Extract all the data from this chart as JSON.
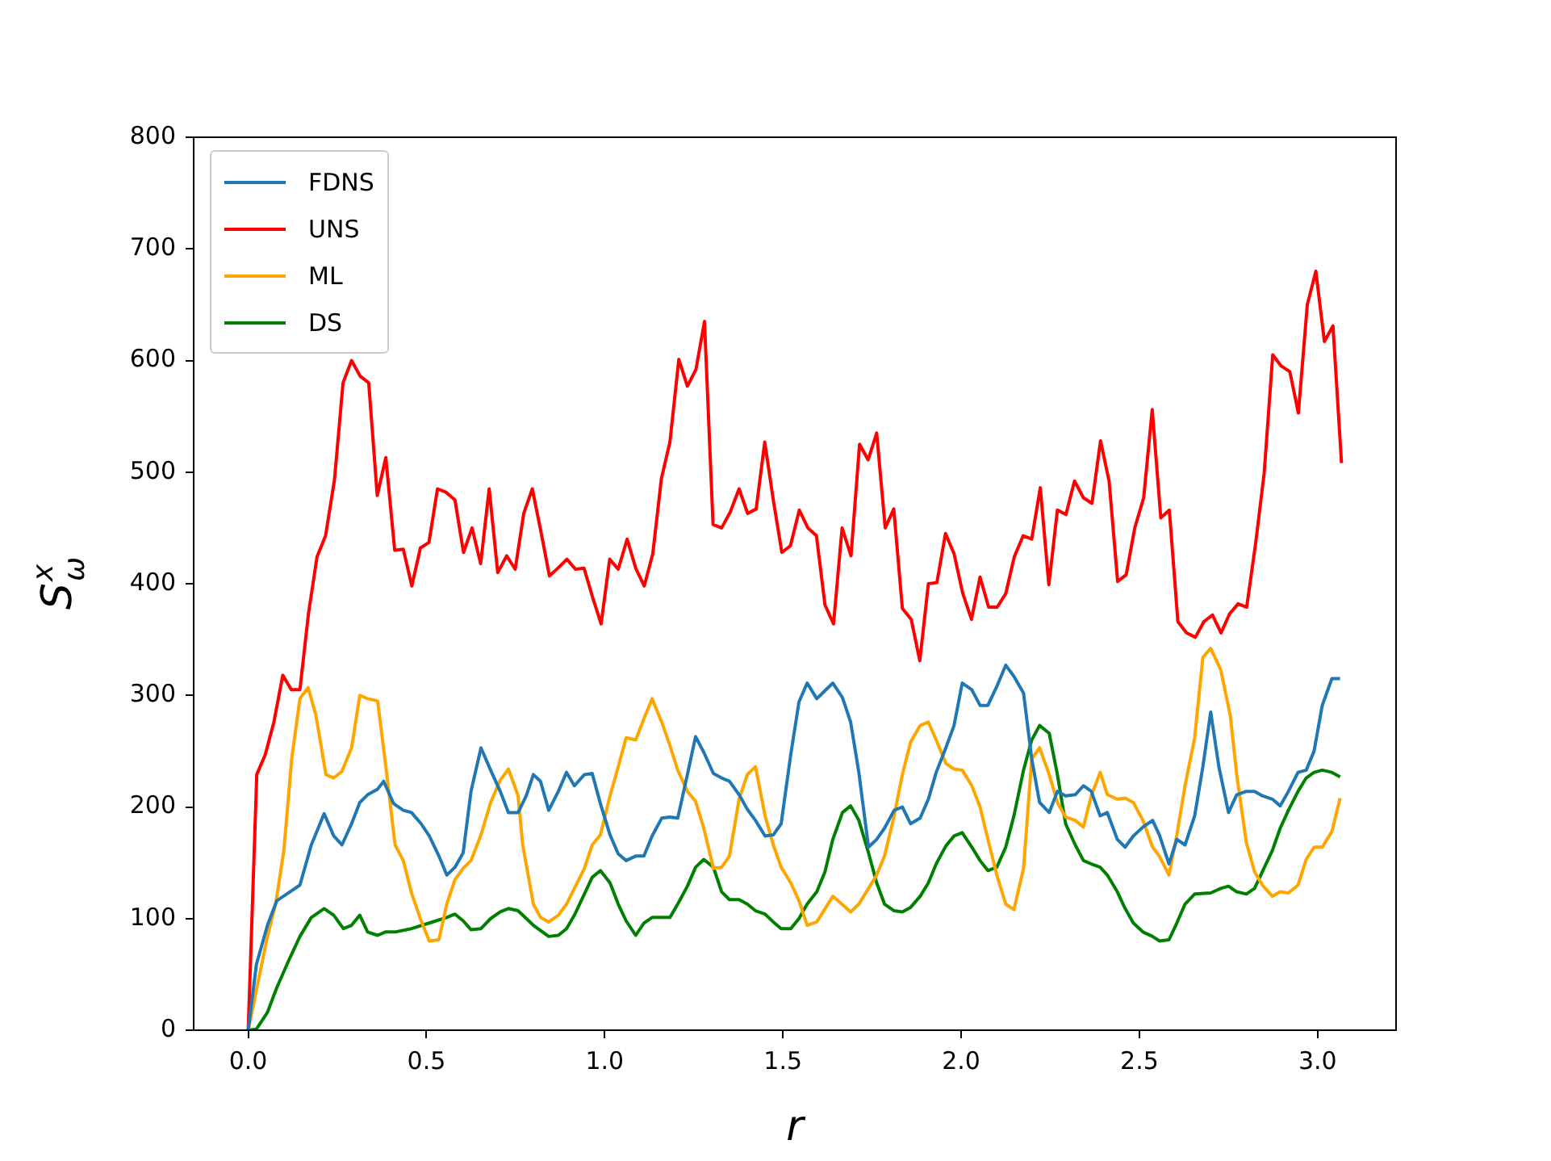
{
  "chart_data": {
    "type": "line",
    "xlabel": "r",
    "ylabel": "S$_{ω}$$^{x}$",
    "xlim": [
      -0.153,
      3.22
    ],
    "ylim": [
      0,
      800
    ],
    "xticks": [
      {
        "value": 0,
        "label": "0.0"
      },
      {
        "value": 0.5,
        "label": "0.5"
      },
      {
        "value": 1,
        "label": "1.0"
      },
      {
        "value": 1.5,
        "label": "1.5"
      },
      {
        "value": 2,
        "label": "2.0"
      },
      {
        "value": 2.5,
        "label": "2.5"
      },
      {
        "value": 3,
        "label": "3.0"
      }
    ],
    "yticks": [
      0,
      100,
      200,
      300,
      400,
      500,
      600,
      700,
      800
    ],
    "grid": false,
    "legend": "top left",
    "marker": "none",
    "line_style": "solid",
    "series": [
      {
        "name": "FDNS",
        "color": "#1f77b4",
        "x": [
          0,
          0.023,
          0.054,
          0.08,
          0.113,
          0.145,
          0.177,
          0.213,
          0.24,
          0.263,
          0.29,
          0.313,
          0.335,
          0.363,
          0.38,
          0.408,
          0.435,
          0.458,
          0.485,
          0.508,
          0.535,
          0.557,
          0.58,
          0.603,
          0.625,
          0.653,
          0.68,
          0.707,
          0.73,
          0.757,
          0.78,
          0.8,
          0.82,
          0.843,
          0.87,
          0.893,
          0.915,
          0.943,
          0.965,
          0.988,
          1.015,
          1.038,
          1.06,
          1.087,
          1.11,
          1.133,
          1.16,
          1.183,
          1.205,
          1.232,
          1.255,
          1.278,
          1.305,
          1.328,
          1.35,
          1.377,
          1.4,
          1.423,
          1.45,
          1.473,
          1.495,
          1.522,
          1.545,
          1.568,
          1.595,
          1.64,
          1.667,
          1.69,
          1.713,
          1.74,
          1.763,
          1.785,
          1.812,
          1.835,
          1.858,
          1.885,
          1.908,
          1.93,
          1.957,
          1.98,
          2.003,
          2.03,
          2.053,
          2.075,
          2.1,
          2.125,
          2.148,
          2.175,
          2.198,
          2.22,
          2.247,
          2.27,
          2.293,
          2.32,
          2.343,
          2.365,
          2.39,
          2.41,
          2.438,
          2.46,
          2.483,
          2.51,
          2.537,
          2.556,
          2.583,
          2.605,
          2.628,
          2.655,
          2.678,
          2.7,
          2.723,
          2.75,
          2.773,
          2.8,
          2.823,
          2.845,
          2.873,
          2.895,
          2.918,
          2.945,
          2.968,
          2.99,
          3.013,
          3.04,
          3.063
        ],
        "values": [
          0,
          59,
          94,
          116,
          123,
          130,
          166,
          194,
          174,
          166,
          185,
          204,
          211,
          216,
          223,
          203,
          197,
          195,
          185,
          174,
          156,
          139,
          146,
          159,
          214,
          253,
          233,
          214,
          195,
          195,
          210,
          229,
          223,
          197,
          214,
          231,
          219,
          229,
          230,
          203,
          175,
          158,
          152,
          156,
          156,
          174,
          190,
          191,
          190,
          229,
          263,
          249,
          230,
          226,
          223,
          211,
          198,
          188,
          174,
          175,
          185,
          247,
          294,
          311,
          297,
          311,
          298,
          276,
          231,
          164,
          171,
          181,
          197,
          200,
          185,
          190,
          207,
          231,
          253,
          273,
          311,
          305,
          291,
          291,
          308,
          327,
          317,
          302,
          243,
          204,
          195,
          214,
          210,
          211,
          219,
          214,
          192,
          195,
          171,
          164,
          174,
          182,
          188,
          175,
          149,
          171,
          166,
          192,
          236,
          285,
          236,
          195,
          211,
          214,
          214,
          210,
          207,
          201,
          214,
          231,
          233,
          250,
          291,
          315,
          315
        ]
      },
      {
        "name": "UNS",
        "color": "#ff0000",
        "x": [
          0,
          0.024,
          0.048,
          0.072,
          0.097,
          0.121,
          0.145,
          0.169,
          0.193,
          0.217,
          0.242,
          0.266,
          0.29,
          0.314,
          0.338,
          0.362,
          0.386,
          0.411,
          0.435,
          0.459,
          0.483,
          0.507,
          0.531,
          0.555,
          0.58,
          0.604,
          0.628,
          0.652,
          0.676,
          0.7,
          0.725,
          0.749,
          0.773,
          0.797,
          0.821,
          0.845,
          0.869,
          0.894,
          0.918,
          0.942,
          0.966,
          0.99,
          1.014,
          1.038,
          1.063,
          1.087,
          1.111,
          1.135,
          1.159,
          1.183,
          1.208,
          1.232,
          1.256,
          1.28,
          1.304,
          1.328,
          1.352,
          1.377,
          1.401,
          1.425,
          1.449,
          1.473,
          1.497,
          1.521,
          1.546,
          1.57,
          1.594,
          1.618,
          1.642,
          1.666,
          1.691,
          1.715,
          1.739,
          1.763,
          1.787,
          1.811,
          1.835,
          1.86,
          1.884,
          1.908,
          1.932,
          1.956,
          1.98,
          2.004,
          2.029,
          2.053,
          2.077,
          2.101,
          2.125,
          2.149,
          2.174,
          2.198,
          2.222,
          2.246,
          2.27,
          2.294,
          2.318,
          2.343,
          2.367,
          2.391,
          2.415,
          2.439,
          2.463,
          2.487,
          2.512,
          2.536,
          2.56,
          2.584,
          2.608,
          2.632,
          2.657,
          2.681,
          2.705,
          2.729,
          2.753,
          2.777,
          2.801,
          2.826,
          2.85,
          2.874,
          2.898,
          2.922,
          2.946,
          2.971,
          2.995,
          3.019,
          3.043,
          3.067
        ],
        "values": [
          0,
          229,
          247,
          276,
          318,
          305,
          305,
          373,
          424,
          443,
          493,
          580,
          600,
          586,
          580,
          479,
          513,
          430,
          431,
          398,
          432,
          437,
          485,
          482,
          475,
          428,
          450,
          418,
          485,
          410,
          425,
          413,
          463,
          485,
          447,
          407,
          414,
          422,
          413,
          414,
          388,
          364,
          422,
          413,
          440,
          414,
          398,
          427,
          494,
          527,
          601,
          577,
          592,
          635,
          453,
          450,
          464,
          485,
          463,
          467,
          527,
          475,
          428,
          434,
          466,
          450,
          443,
          381,
          364,
          450,
          425,
          525,
          511,
          535,
          450,
          467,
          378,
          368,
          331,
          400,
          401,
          445,
          427,
          392,
          368,
          406,
          379,
          379,
          391,
          424,
          443,
          440,
          486,
          399,
          466,
          462,
          492,
          477,
          472,
          528,
          492,
          402,
          408,
          450,
          477,
          556,
          459,
          466,
          366,
          356,
          352,
          366,
          372,
          356,
          373,
          382,
          379,
          436,
          499,
          605,
          595,
          590,
          553,
          650,
          680,
          617,
          631,
          508
        ]
      },
      {
        "name": "ML",
        "color": "#ffa500",
        "x": [
          0,
          0.023,
          0.054,
          0.077,
          0.1,
          0.122,
          0.145,
          0.168,
          0.19,
          0.218,
          0.24,
          0.263,
          0.29,
          0.313,
          0.335,
          0.363,
          0.385,
          0.412,
          0.435,
          0.458,
          0.485,
          0.508,
          0.535,
          0.557,
          0.58,
          0.603,
          0.625,
          0.653,
          0.68,
          0.707,
          0.73,
          0.757,
          0.77,
          0.8,
          0.82,
          0.843,
          0.87,
          0.893,
          0.915,
          0.943,
          0.965,
          0.988,
          1.015,
          1.038,
          1.06,
          1.087,
          1.11,
          1.133,
          1.16,
          1.183,
          1.205,
          1.232,
          1.255,
          1.278,
          1.305,
          1.328,
          1.35,
          1.377,
          1.4,
          1.423,
          1.45,
          1.473,
          1.495,
          1.522,
          1.545,
          1.568,
          1.595,
          1.64,
          1.69,
          1.713,
          1.74,
          1.763,
          1.785,
          1.812,
          1.835,
          1.858,
          1.885,
          1.908,
          1.93,
          1.957,
          1.98,
          2.003,
          2.03,
          2.053,
          2.075,
          2.1,
          2.125,
          2.148,
          2.175,
          2.198,
          2.22,
          2.247,
          2.27,
          2.293,
          2.32,
          2.343,
          2.365,
          2.39,
          2.41,
          2.438,
          2.46,
          2.483,
          2.51,
          2.537,
          2.556,
          2.583,
          2.605,
          2.628,
          2.655,
          2.678,
          2.7,
          2.728,
          2.755,
          2.773,
          2.8,
          2.823,
          2.845,
          2.873,
          2.895,
          2.918,
          2.945,
          2.968,
          2.99,
          3.013,
          3.04,
          3.063
        ],
        "values": [
          0,
          36,
          84,
          113,
          161,
          243,
          297,
          307,
          282,
          229,
          226,
          232,
          253,
          300,
          297,
          295,
          239,
          166,
          152,
          123,
          98,
          80,
          81,
          113,
          135,
          145,
          152,
          175,
          204,
          224,
          234,
          210,
          166,
          113,
          101,
          97,
          103,
          113,
          127,
          145,
          166,
          175,
          210,
          236,
          262,
          260,
          279,
          297,
          276,
          255,
          233,
          214,
          205,
          181,
          145,
          146,
          156,
          207,
          229,
          236,
          192,
          166,
          146,
          132,
          116,
          94,
          97,
          120,
          106,
          113,
          127,
          139,
          156,
          192,
          229,
          258,
          273,
          276,
          260,
          239,
          234,
          233,
          219,
          200,
          171,
          139,
          113,
          108,
          145,
          243,
          253,
          229,
          204,
          191,
          188,
          182,
          210,
          231,
          211,
          207,
          208,
          204,
          188,
          164,
          156,
          139,
          175,
          219,
          262,
          334,
          342,
          323,
          282,
          229,
          168,
          142,
          130,
          120,
          124,
          123,
          130,
          153,
          164,
          164,
          178,
          208
        ]
      },
      {
        "name": "DS",
        "color": "#008000",
        "x": [
          0,
          0.023,
          0.054,
          0.08,
          0.113,
          0.145,
          0.177,
          0.213,
          0.24,
          0.267,
          0.29,
          0.313,
          0.335,
          0.363,
          0.385,
          0.412,
          0.458,
          0.508,
          0.557,
          0.58,
          0.603,
          0.625,
          0.653,
          0.68,
          0.707,
          0.73,
          0.757,
          0.8,
          0.843,
          0.87,
          0.893,
          0.915,
          0.943,
          0.965,
          0.988,
          1.015,
          1.038,
          1.06,
          1.087,
          1.11,
          1.133,
          1.16,
          1.183,
          1.205,
          1.232,
          1.255,
          1.278,
          1.305,
          1.328,
          1.35,
          1.377,
          1.4,
          1.423,
          1.45,
          1.473,
          1.495,
          1.522,
          1.545,
          1.568,
          1.595,
          1.618,
          1.64,
          1.667,
          1.69,
          1.713,
          1.74,
          1.763,
          1.785,
          1.812,
          1.835,
          1.858,
          1.885,
          1.908,
          1.93,
          1.957,
          1.98,
          2.003,
          2.03,
          2.053,
          2.075,
          2.1,
          2.125,
          2.148,
          2.175,
          2.198,
          2.22,
          2.247,
          2.27,
          2.293,
          2.32,
          2.343,
          2.365,
          2.39,
          2.41,
          2.438,
          2.46,
          2.483,
          2.51,
          2.537,
          2.556,
          2.583,
          2.605,
          2.628,
          2.655,
          2.7,
          2.728,
          2.75,
          2.773,
          2.8,
          2.823,
          2.845,
          2.873,
          2.895,
          2.918,
          2.945,
          2.968,
          2.99,
          3.013,
          3.04,
          3.063
        ],
        "values": [
          0,
          1,
          16,
          38,
          62,
          84,
          101,
          109,
          103,
          91,
          94,
          103,
          88,
          85,
          88,
          88,
          91,
          96,
          101,
          104,
          98,
          90,
          91,
          100,
          106,
          109,
          107,
          94,
          84,
          85,
          91,
          103,
          122,
          137,
          143,
          132,
          113,
          98,
          85,
          96,
          101,
          101,
          101,
          113,
          129,
          146,
          153,
          146,
          124,
          117,
          117,
          113,
          107,
          104,
          97,
          91,
          91,
          100,
          113,
          124,
          142,
          171,
          195,
          201,
          188,
          159,
          132,
          113,
          107,
          106,
          110,
          120,
          132,
          149,
          165,
          174,
          177,
          164,
          152,
          143,
          146,
          164,
          192,
          233,
          260,
          273,
          266,
          229,
          185,
          166,
          152,
          149,
          146,
          139,
          124,
          109,
          96,
          88,
          84,
          80,
          81,
          96,
          113,
          122,
          123,
          127,
          129,
          124,
          122,
          127,
          142,
          161,
          181,
          197,
          214,
          226,
          231,
          233,
          231,
          227
        ]
      }
    ]
  }
}
